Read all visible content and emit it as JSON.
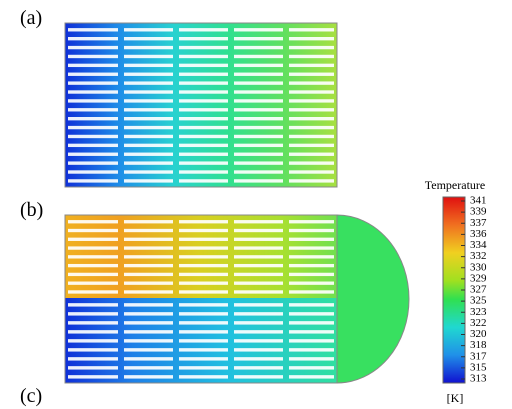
{
  "panels": {
    "a": "(a)",
    "b": "(b)",
    "c": "(c)"
  },
  "colorbar": {
    "title": "Temperature",
    "unit": "[K]",
    "ticks": [
      "341",
      "339",
      "337",
      "336",
      "334",
      "332",
      "330",
      "329",
      "327",
      "325",
      "323",
      "322",
      "320",
      "318",
      "317",
      "315",
      "313"
    ]
  }
}
